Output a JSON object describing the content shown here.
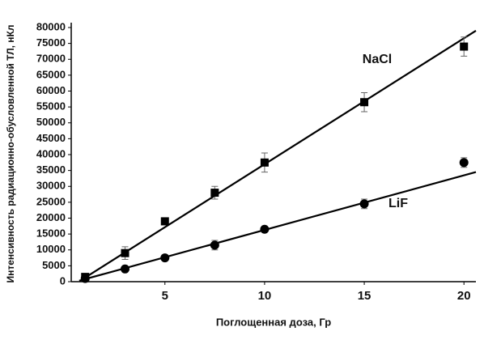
{
  "chart_data": {
    "type": "scatter",
    "x_label": "Поглощенная доза, Гр",
    "y_label": "Интенсивность радиационно-обусловленной ТЛ, нКл",
    "xlim": [
      0.3,
      20.6
    ],
    "xticks": [
      5,
      10,
      15,
      20
    ],
    "ylim": [
      0,
      80000
    ],
    "yticks": [
      0,
      5000,
      10000,
      15000,
      20000,
      25000,
      30000,
      35000,
      40000,
      45000,
      50000,
      55000,
      60000,
      65000,
      70000,
      75000,
      80000
    ],
    "series": [
      {
        "name": "NaCl",
        "color": "#000000",
        "marker": "square",
        "x": [
          1,
          3,
          5,
          7.5,
          10,
          15,
          20
        ],
        "values": [
          1500,
          9000,
          19000,
          28000,
          37500,
          56500,
          74000
        ],
        "errors": [
          500,
          2000,
          500,
          2000,
          3000,
          3000,
          3000
        ],
        "fit_x": [
          0.8,
          20.6
        ],
        "fit_values": [
          500,
          79000
        ]
      },
      {
        "name": "LiF",
        "color": "#000000",
        "marker": "circle",
        "x": [
          1,
          3,
          5,
          7.5,
          10,
          15,
          20
        ],
        "values": [
          1000,
          4000,
          7500,
          11500,
          16500,
          24500,
          37500
        ],
        "errors": [
          500,
          500,
          500,
          1500,
          500,
          1500,
          1500
        ],
        "fit_x": [
          0.7,
          20.6
        ],
        "fit_values": [
          300,
          34500
        ]
      }
    ]
  }
}
